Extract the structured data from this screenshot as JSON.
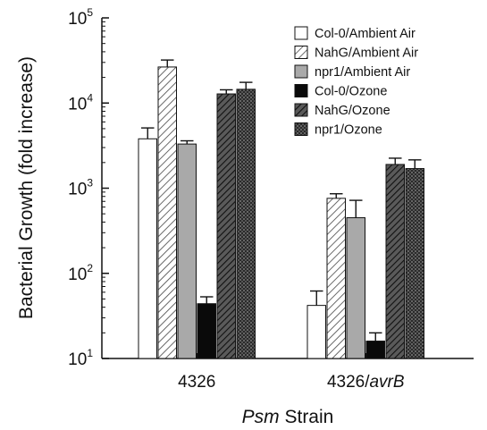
{
  "chart_data": {
    "type": "bar",
    "xlabel_parts": [
      "Psm",
      " Strain"
    ],
    "ylabel": "Bacterial Growth (fold increase)",
    "yscale": "log",
    "ylim": [
      10,
      100000
    ],
    "yticks": [
      {
        "base": "10",
        "exp": "1",
        "value": 10
      },
      {
        "base": "10",
        "exp": "2",
        "value": 100
      },
      {
        "base": "10",
        "exp": "3",
        "value": 1000
      },
      {
        "base": "10",
        "exp": "4",
        "value": 10000
      },
      {
        "base": "10",
        "exp": "5",
        "value": 100000
      }
    ],
    "categories": [
      {
        "parts": [
          "4326"
        ]
      },
      {
        "parts": [
          "4326/",
          "avrB"
        ]
      }
    ],
    "legend_position": "top-right",
    "series": [
      {
        "name": "Col-0/Ambient Air",
        "pattern": "white",
        "values": [
          3800,
          42
        ],
        "errors": [
          5100,
          62
        ]
      },
      {
        "name": "NahG/Ambient Air",
        "pattern": "hatch-light",
        "values": [
          26500,
          760
        ],
        "errors": [
          32000,
          860
        ]
      },
      {
        "name": "npr1/Ambient Air",
        "pattern": "gray",
        "values": [
          3300,
          450
        ],
        "errors": [
          3600,
          720
        ]
      },
      {
        "name": "Col-0/Ozone",
        "pattern": "black",
        "values": [
          44,
          16
        ],
        "errors": [
          53,
          20
        ]
      },
      {
        "name": "NahG/Ozone",
        "pattern": "hatch-dark",
        "values": [
          12800,
          1900
        ],
        "errors": [
          14300,
          2250
        ]
      },
      {
        "name": "npr1/Ozone",
        "pattern": "dark-texture",
        "values": [
          14500,
          1700
        ],
        "errors": [
          17500,
          2150
        ]
      }
    ]
  }
}
